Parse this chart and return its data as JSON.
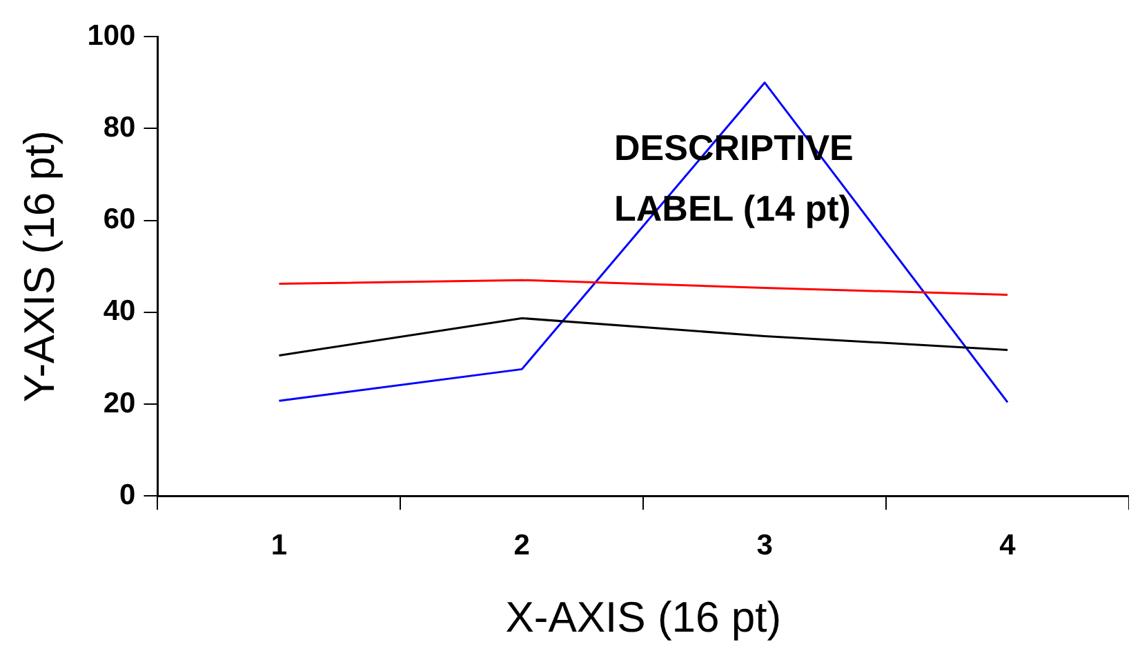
{
  "chart_data": {
    "type": "line",
    "xlabel": "X-AXIS (16 pt)",
    "ylabel": "Y-AXIS (16 pt)",
    "categories": [
      "1",
      "2",
      "3",
      "4"
    ],
    "series": [
      {
        "color": "#ff0000",
        "values": [
          46.2,
          47.0,
          45.3,
          43.8
        ]
      },
      {
        "color": "#000000",
        "values": [
          30.6,
          38.7,
          34.8,
          31.8
        ]
      },
      {
        "color": "#0000ff",
        "values": [
          20.7,
          27.6,
          90,
          20.4
        ]
      }
    ],
    "ylim": [
      0,
      100
    ],
    "yticks": [
      0,
      20,
      40,
      60,
      80,
      100
    ],
    "grid": false,
    "legend": false,
    "marker": "none",
    "line_style": "solid",
    "annotations": [
      "DESCRIPTIVE LABEL (14 pt)"
    ]
  }
}
